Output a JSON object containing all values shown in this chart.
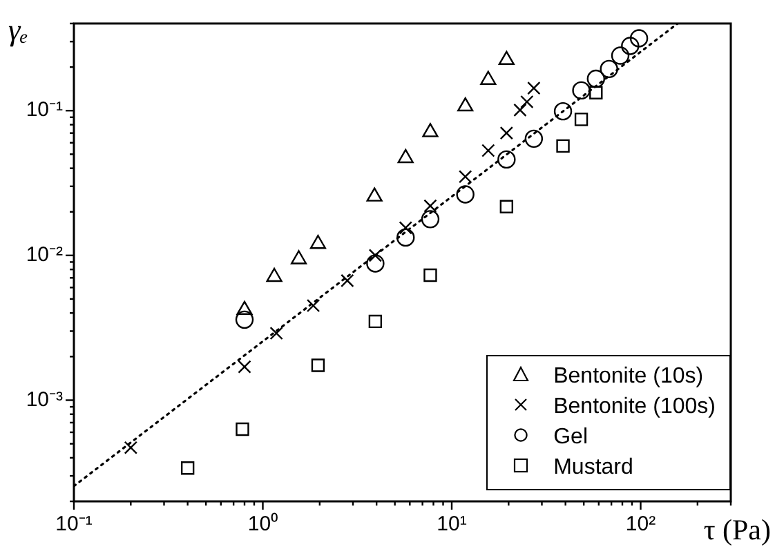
{
  "chart_data": {
    "type": "scatter",
    "xlabel": "τ (Pa)",
    "ylabel": "γₑ",
    "log": "xy",
    "grid": false,
    "legend": "bottom right",
    "xlim": [
      0.1,
      300
    ],
    "ylim": [
      0.0002,
      0.4
    ],
    "xticks": [
      {
        "value": 0.1,
        "label": "10⁻¹"
      },
      {
        "value": 0.2,
        "label": null
      },
      {
        "value": 0.3,
        "label": null
      },
      {
        "value": 0.4,
        "label": null
      },
      {
        "value": 0.5,
        "label": null
      },
      {
        "value": 0.6,
        "label": null
      },
      {
        "value": 0.7,
        "label": null
      },
      {
        "value": 0.8,
        "label": null
      },
      {
        "value": 0.9,
        "label": null
      },
      {
        "value": 1,
        "label": "10⁰"
      },
      {
        "value": 2,
        "label": null
      },
      {
        "value": 3,
        "label": null
      },
      {
        "value": 4,
        "label": null
      },
      {
        "value": 5,
        "label": null
      },
      {
        "value": 6,
        "label": null
      },
      {
        "value": 7,
        "label": null
      },
      {
        "value": 8,
        "label": null
      },
      {
        "value": 9,
        "label": null
      },
      {
        "value": 10,
        "label": "10¹"
      },
      {
        "value": 20,
        "label": null
      },
      {
        "value": 30,
        "label": null
      },
      {
        "value": 40,
        "label": null
      },
      {
        "value": 50,
        "label": null
      },
      {
        "value": 60,
        "label": null
      },
      {
        "value": 70,
        "label": null
      },
      {
        "value": 80,
        "label": null
      },
      {
        "value": 90,
        "label": null
      },
      {
        "value": 100,
        "label": "10²"
      },
      {
        "value": 200,
        "label": null
      },
      {
        "value": 300,
        "label": null
      }
    ],
    "yticks": [
      {
        "value": 0.0002,
        "label": null
      },
      {
        "value": 0.0003,
        "label": null
      },
      {
        "value": 0.0004,
        "label": null
      },
      {
        "value": 0.0005,
        "label": null
      },
      {
        "value": 0.0006,
        "label": null
      },
      {
        "value": 0.0007,
        "label": null
      },
      {
        "value": 0.0008,
        "label": null
      },
      {
        "value": 0.0009,
        "label": null
      },
      {
        "value": 0.001,
        "label": "10⁻³"
      },
      {
        "value": 0.002,
        "label": null
      },
      {
        "value": 0.003,
        "label": null
      },
      {
        "value": 0.004,
        "label": null
      },
      {
        "value": 0.005,
        "label": null
      },
      {
        "value": 0.006,
        "label": null
      },
      {
        "value": 0.007,
        "label": null
      },
      {
        "value": 0.008,
        "label": null
      },
      {
        "value": 0.009,
        "label": null
      },
      {
        "value": 0.01,
        "label": "10⁻²"
      },
      {
        "value": 0.02,
        "label": null
      },
      {
        "value": 0.03,
        "label": null
      },
      {
        "value": 0.04,
        "label": null
      },
      {
        "value": 0.05,
        "label": null
      },
      {
        "value": 0.06,
        "label": null
      },
      {
        "value": 0.07,
        "label": null
      },
      {
        "value": 0.08,
        "label": null
      },
      {
        "value": 0.09,
        "label": null
      },
      {
        "value": 0.1,
        "label": "10⁻¹"
      },
      {
        "value": 0.2,
        "label": null
      },
      {
        "value": 0.3,
        "label": null
      },
      {
        "value": 0.4,
        "label": null
      }
    ],
    "series": [
      {
        "name": "Bentonite (10s)",
        "color": "#000000",
        "marker": "triangle",
        "x": [
          0.8,
          1.15,
          1.55,
          1.96,
          3.9,
          5.7,
          7.7,
          11.8,
          15.6,
          19.5
        ],
        "values": [
          0.0042,
          0.0071,
          0.0094,
          0.012,
          0.0255,
          0.047,
          0.071,
          0.107,
          0.163,
          0.224
        ]
      },
      {
        "name": "Bentonite (100s)",
        "color": "#000000",
        "marker": "cross",
        "x": [
          0.2,
          0.8,
          1.18,
          1.85,
          2.8,
          3.94,
          5.7,
          7.7,
          11.8,
          15.6,
          19.5,
          23,
          25,
          27.2
        ],
        "values": [
          0.00047,
          0.0017,
          0.0029,
          0.0045,
          0.0067,
          0.01,
          0.0155,
          0.022,
          0.035,
          0.053,
          0.07,
          0.101,
          0.115,
          0.143
        ]
      },
      {
        "name": "Gel",
        "color": "#000000",
        "marker": "circle",
        "x": [
          0.8,
          3.94,
          5.7,
          7.7,
          11.8,
          19.5,
          27.2,
          38.8,
          48.5,
          58,
          68,
          78,
          88,
          98
        ],
        "values": [
          0.0036,
          0.0088,
          0.0133,
          0.0178,
          0.0264,
          0.046,
          0.064,
          0.099,
          0.138,
          0.166,
          0.194,
          0.24,
          0.28,
          0.316
        ]
      },
      {
        "name": "Mustard",
        "color": "#000000",
        "marker": "square",
        "x": [
          0.4,
          0.78,
          1.96,
          3.94,
          7.7,
          19.5,
          38.8,
          48.5,
          58
        ],
        "values": [
          0.00034,
          0.00063,
          0.00174,
          0.0035,
          0.0073,
          0.0217,
          0.057,
          0.087,
          0.133
        ]
      },
      {
        "type": "line",
        "color": "#000000",
        "marker": "none",
        "line_style": "dotted",
        "x": [
          0.1,
          157
        ],
        "values": [
          0.000255,
          0.4
        ]
      }
    ]
  }
}
